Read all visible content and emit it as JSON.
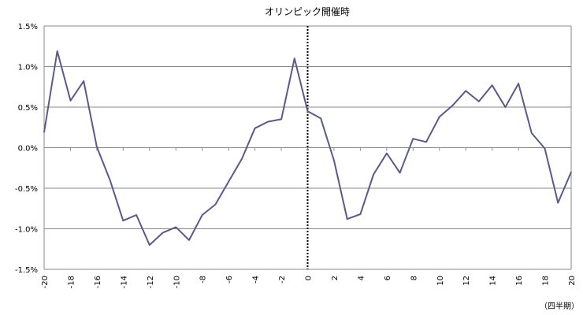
{
  "chart_data": {
    "type": "line",
    "title": "オリンピック開催時",
    "x_unit_label": "（四半期）",
    "xlim": [
      -20,
      20
    ],
    "ylim": [
      -1.5,
      1.5
    ],
    "y_ticks": [
      1.5,
      1.0,
      0.5,
      0.0,
      -0.5,
      -1.0,
      -1.5
    ],
    "y_tick_labels": [
      "1.5%",
      "1.0%",
      "0.5%",
      "0.0%",
      "-0.5%",
      "-1.0%",
      "-1.5%"
    ],
    "x_ticks": [
      -20,
      -18,
      -16,
      -14,
      -12,
      -10,
      -8,
      -6,
      -4,
      -2,
      0,
      2,
      4,
      6,
      8,
      10,
      12,
      14,
      16,
      18,
      20
    ],
    "x_tick_labels": [
      "-20",
      "-18",
      "-16",
      "-14",
      "-12",
      "-10",
      "-8",
      "-6",
      "-4",
      "-2",
      "0",
      "2",
      "4",
      "6",
      "8",
      "10",
      "12",
      "14",
      "16",
      "18",
      "20"
    ],
    "reference_line_x": 0,
    "grid": "horizontal",
    "line_color": "#5a5a8a",
    "series": [
      {
        "x": [
          -20,
          -19,
          -18,
          -17,
          -16,
          -15,
          -14,
          -13,
          -12,
          -11,
          -10,
          -9,
          -8,
          -7,
          -6,
          -5,
          -4,
          -3,
          -2,
          -1,
          0,
          1,
          2,
          3,
          4,
          5,
          6,
          7,
          8,
          9,
          10,
          11,
          12,
          13,
          14,
          15,
          16,
          17,
          18,
          19,
          20
        ],
        "values": [
          0.19,
          1.19,
          0.58,
          0.82,
          0.01,
          -0.4,
          -0.9,
          -0.83,
          -1.2,
          -1.05,
          -0.98,
          -1.14,
          -0.83,
          -0.7,
          -0.42,
          -0.14,
          0.24,
          0.32,
          0.35,
          1.1,
          0.45,
          0.36,
          -0.16,
          -0.88,
          -0.82,
          -0.33,
          -0.07,
          -0.31,
          0.11,
          0.07,
          0.38,
          0.52,
          0.7,
          0.57,
          0.77,
          0.5,
          0.79,
          0.18,
          -0.01,
          -0.68,
          -0.3
        ]
      }
    ]
  }
}
